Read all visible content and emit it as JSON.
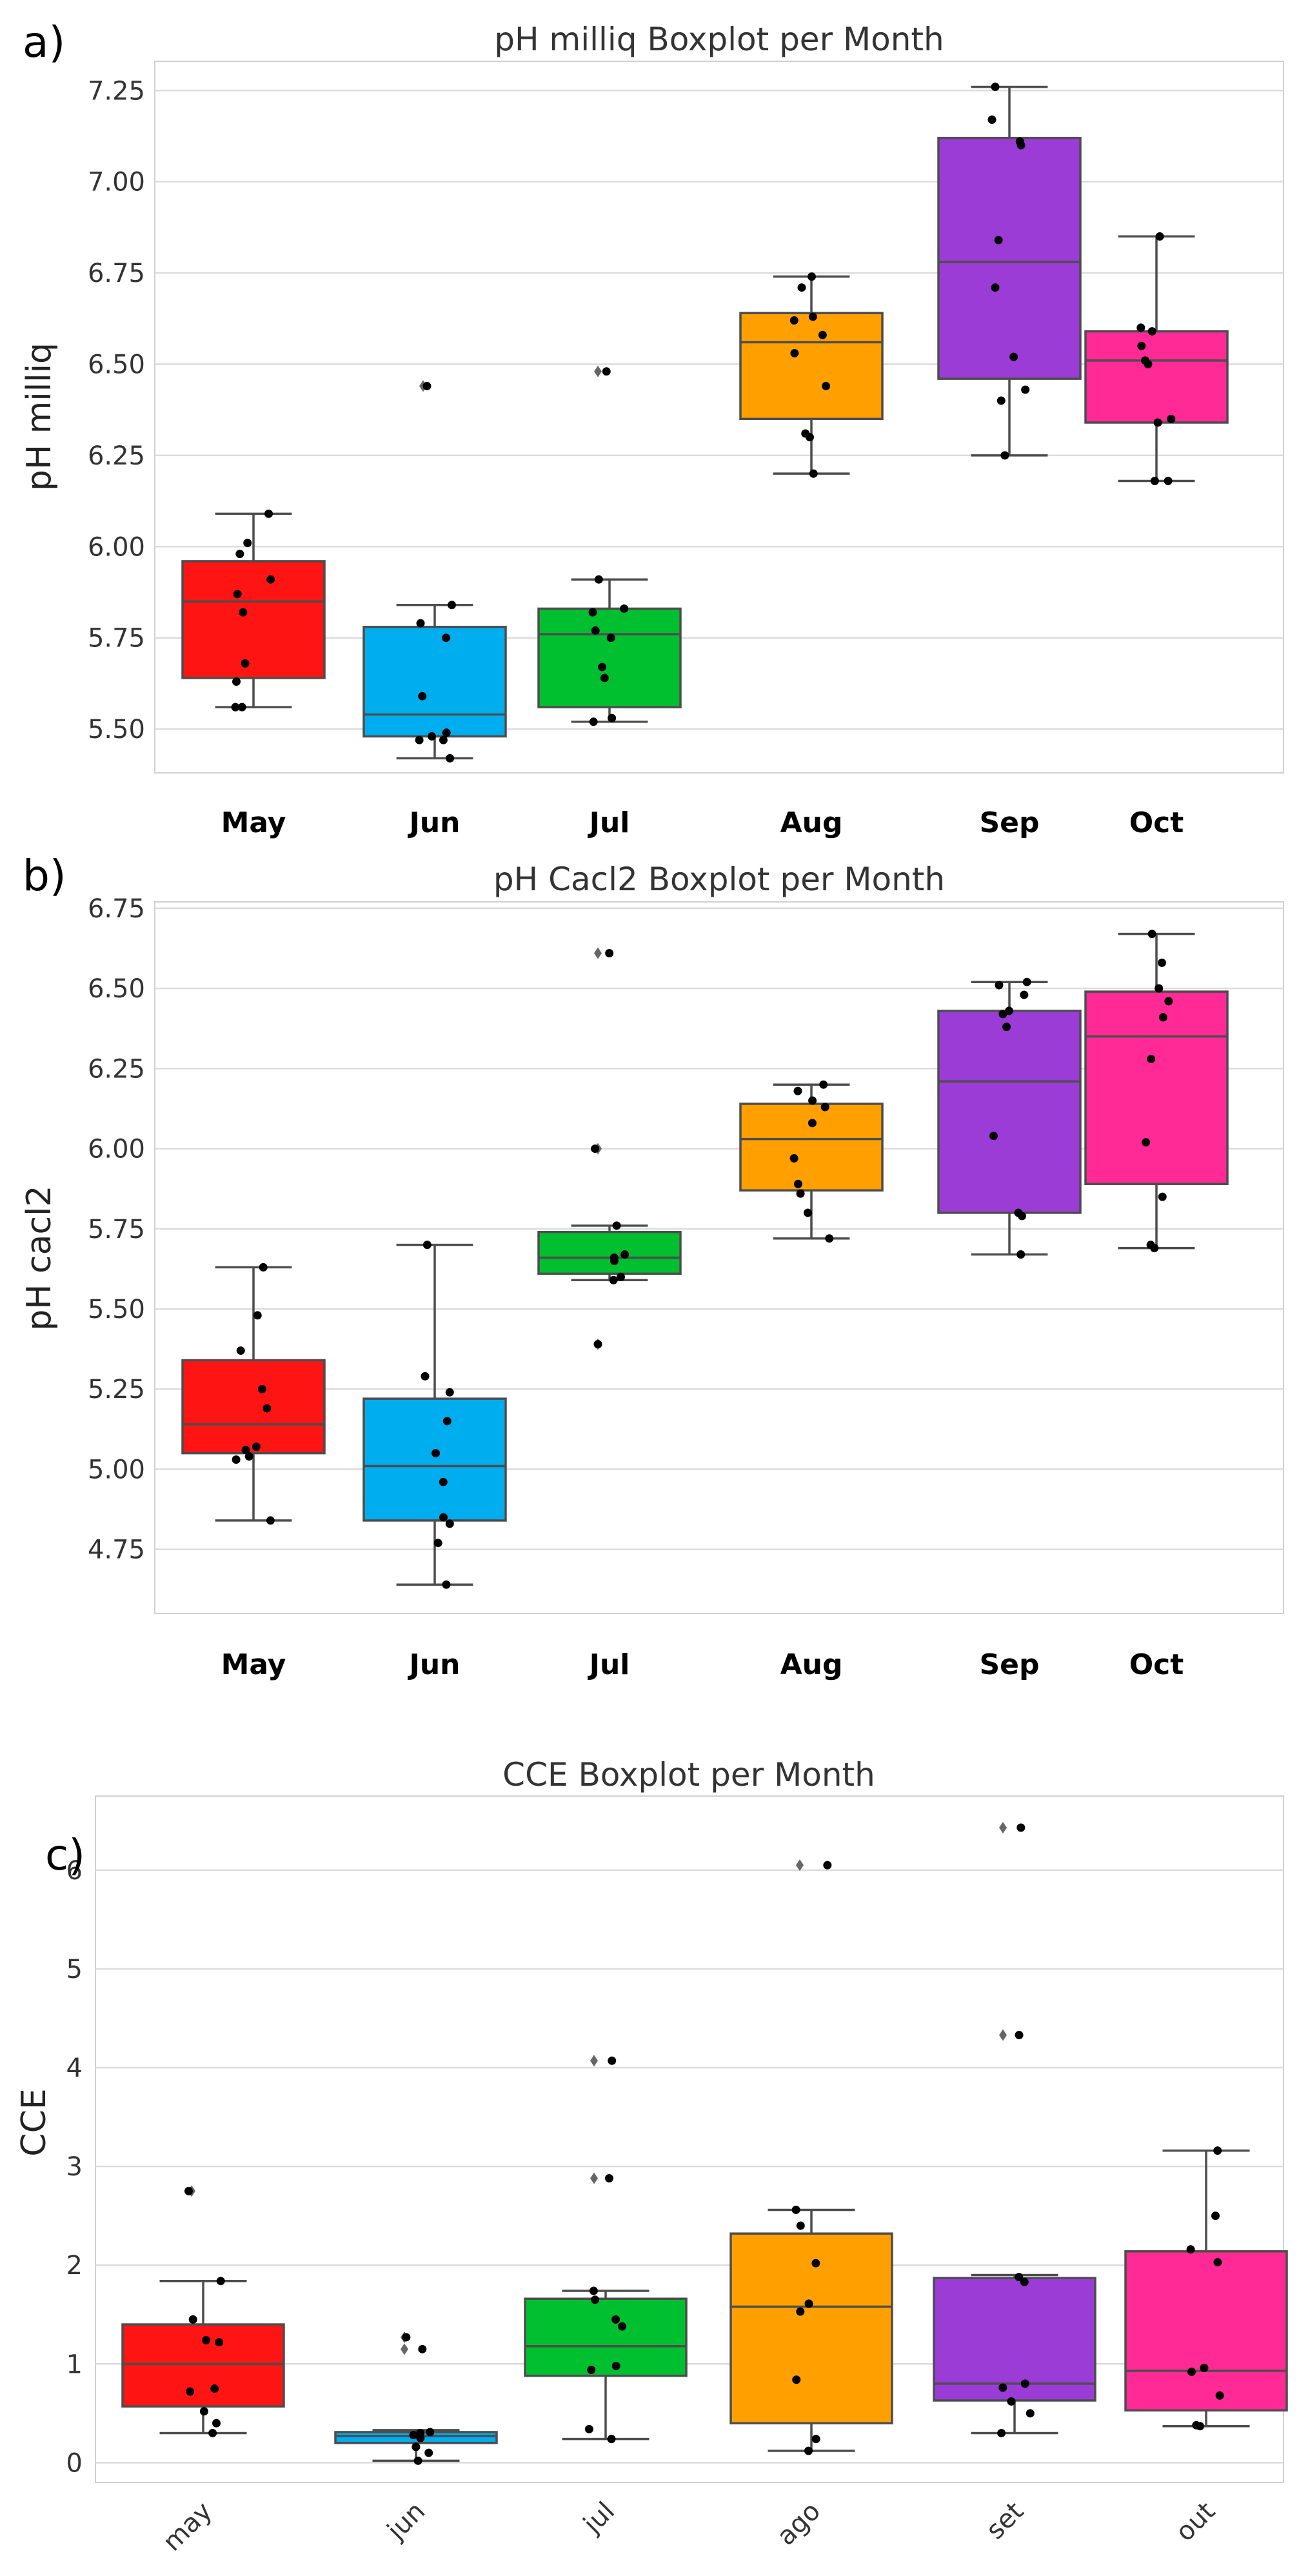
{
  "chart_data": [
    {
      "type": "box",
      "panel_label": "a)",
      "title": "pH milliq Boxplot per Month",
      "xlabel": "",
      "ylabel": "pH milliq",
      "ylim": [
        5.38,
        7.33
      ],
      "yticks": [
        5.5,
        5.75,
        6.0,
        6.25,
        6.5,
        6.75,
        7.0,
        7.25
      ],
      "ytick_labels": [
        "5.50",
        "5.75",
        "6.00",
        "6.25",
        "6.50",
        "6.75",
        "7.00",
        "7.25"
      ],
      "categories": [
        "May",
        "Jun",
        "Jul",
        "Aug",
        "Sep",
        "Oct"
      ],
      "colors": [
        "#ff1414",
        "#00aeef",
        "#00c030",
        "#ffa000",
        "#9b3cd6",
        "#ff2a95"
      ],
      "boxes": [
        {
          "month": "May",
          "whisker_low": 5.56,
          "q1": 5.64,
          "median": 5.85,
          "q3": 5.96,
          "whisker_high": 6.09,
          "fliers": [],
          "points": [
            5.56,
            5.56,
            5.63,
            5.68,
            5.82,
            5.87,
            5.91,
            5.98,
            6.01,
            6.09
          ]
        },
        {
          "month": "Jun",
          "whisker_low": 5.42,
          "q1": 5.48,
          "median": 5.54,
          "q3": 5.78,
          "whisker_high": 5.84,
          "fliers": [
            6.44
          ],
          "points": [
            5.42,
            5.47,
            5.47,
            5.48,
            5.49,
            5.59,
            5.75,
            5.79,
            5.84,
            6.44
          ]
        },
        {
          "month": "Jul",
          "whisker_low": 5.52,
          "q1": 5.56,
          "median": 5.76,
          "q3": 5.83,
          "whisker_high": 5.91,
          "fliers": [
            6.48
          ],
          "points": [
            5.52,
            5.53,
            5.64,
            5.67,
            5.75,
            5.77,
            5.82,
            5.83,
            5.91,
            6.48
          ]
        },
        {
          "month": "Aug",
          "whisker_low": 6.2,
          "q1": 6.35,
          "median": 6.56,
          "q3": 6.64,
          "whisker_high": 6.74,
          "fliers": [],
          "points": [
            6.2,
            6.3,
            6.31,
            6.44,
            6.53,
            6.58,
            6.62,
            6.63,
            6.71,
            6.74
          ]
        },
        {
          "month": "Sep",
          "whisker_low": 6.25,
          "q1": 6.46,
          "median": 6.78,
          "q3": 7.12,
          "whisker_high": 7.26,
          "fliers": [],
          "points": [
            6.25,
            6.4,
            6.43,
            6.52,
            6.71,
            6.84,
            7.1,
            7.11,
            7.17,
            7.26
          ]
        },
        {
          "month": "Oct",
          "whisker_low": 6.18,
          "q1": 6.34,
          "median": 6.51,
          "q3": 6.59,
          "whisker_high": 6.85,
          "fliers": [],
          "points": [
            6.18,
            6.18,
            6.34,
            6.35,
            6.5,
            6.51,
            6.55,
            6.59,
            6.6,
            6.85
          ]
        }
      ]
    },
    {
      "type": "box",
      "panel_label": "b)",
      "title": "pH Cacl2 Boxplot per Month",
      "xlabel": "",
      "ylabel": "pH cacl2",
      "ylim": [
        4.55,
        6.77
      ],
      "yticks": [
        4.75,
        5.0,
        5.25,
        5.5,
        5.75,
        6.0,
        6.25,
        6.5,
        6.75
      ],
      "ytick_labels": [
        "4.75",
        "5.00",
        "5.25",
        "5.50",
        "5.75",
        "6.00",
        "6.25",
        "6.50",
        "6.75"
      ],
      "categories": [
        "May",
        "Jun",
        "Jul",
        "Aug",
        "Sep",
        "Oct"
      ],
      "colors": [
        "#ff1414",
        "#00aeef",
        "#00c030",
        "#ffa000",
        "#9b3cd6",
        "#ff2a95"
      ],
      "boxes": [
        {
          "month": "May",
          "whisker_low": 4.84,
          "q1": 5.05,
          "median": 5.14,
          "q3": 5.34,
          "whisker_high": 5.63,
          "fliers": [],
          "points": [
            4.84,
            5.03,
            5.04,
            5.06,
            5.07,
            5.19,
            5.25,
            5.37,
            5.48,
            5.63
          ]
        },
        {
          "month": "Jun",
          "whisker_low": 4.64,
          "q1": 4.84,
          "median": 5.01,
          "q3": 5.22,
          "whisker_high": 5.7,
          "fliers": [],
          "points": [
            4.64,
            4.77,
            4.83,
            4.85,
            4.96,
            5.05,
            5.15,
            5.24,
            5.29,
            5.7
          ]
        },
        {
          "month": "Jul",
          "whisker_low": 5.59,
          "q1": 5.61,
          "median": 5.66,
          "q3": 5.74,
          "whisker_high": 5.76,
          "fliers": [
            5.39,
            6.0,
            6.61
          ],
          "points": [
            5.39,
            5.59,
            5.6,
            5.65,
            5.66,
            5.67,
            5.76,
            6.0,
            6.61
          ]
        },
        {
          "month": "Aug",
          "whisker_low": 5.72,
          "q1": 5.87,
          "median": 6.03,
          "q3": 6.14,
          "whisker_high": 6.2,
          "fliers": [],
          "points": [
            5.72,
            5.8,
            5.86,
            5.89,
            5.97,
            6.08,
            6.13,
            6.15,
            6.18,
            6.2
          ]
        },
        {
          "month": "Sep",
          "whisker_low": 5.67,
          "q1": 5.8,
          "median": 6.21,
          "q3": 6.43,
          "whisker_high": 6.52,
          "fliers": [],
          "points": [
            5.67,
            5.79,
            5.8,
            6.04,
            6.38,
            6.42,
            6.43,
            6.48,
            6.51,
            6.52
          ]
        },
        {
          "month": "Oct",
          "whisker_low": 5.69,
          "q1": 5.89,
          "median": 6.35,
          "q3": 6.49,
          "whisker_high": 6.67,
          "fliers": [],
          "points": [
            5.69,
            5.7,
            5.85,
            6.02,
            6.28,
            6.41,
            6.46,
            6.5,
            6.58,
            6.67
          ]
        }
      ]
    },
    {
      "type": "box",
      "panel_label": "c)",
      "title": "CCE Boxplot per Month",
      "xlabel": "",
      "ylabel": "CCE",
      "ylim": [
        -0.2,
        6.75
      ],
      "yticks": [
        0,
        1,
        2,
        3,
        4,
        5,
        6
      ],
      "ytick_labels": [
        "0",
        "1",
        "2",
        "3",
        "4",
        "5",
        "6"
      ],
      "categories": [
        "may",
        "jun",
        "jul",
        "ago",
        "set",
        "out"
      ],
      "colors": [
        "#ff1414",
        "#00aeef",
        "#00c030",
        "#ffa000",
        "#9b3cd6",
        "#ff2a95"
      ],
      "boxes": [
        {
          "month": "may",
          "whisker_low": 0.3,
          "q1": 0.57,
          "median": 1.0,
          "q3": 1.4,
          "whisker_high": 1.84,
          "fliers": [
            2.75
          ],
          "points": [
            0.3,
            0.4,
            0.52,
            0.72,
            0.75,
            1.22,
            1.24,
            1.45,
            1.84,
            2.75
          ]
        },
        {
          "month": "jun",
          "whisker_low": 0.02,
          "q1": 0.2,
          "median": 0.27,
          "q3": 0.31,
          "whisker_high": 0.33,
          "fliers": [
            1.15,
            1.27
          ],
          "points": [
            0.02,
            0.1,
            0.16,
            0.25,
            0.28,
            0.3,
            0.31,
            1.15,
            1.27
          ]
        },
        {
          "month": "jul",
          "whisker_low": 0.24,
          "q1": 0.88,
          "median": 1.18,
          "q3": 1.66,
          "whisker_high": 1.74,
          "fliers": [
            2.88,
            4.07
          ],
          "points": [
            0.24,
            0.34,
            0.94,
            0.98,
            1.38,
            1.45,
            1.65,
            1.74,
            2.88,
            4.07
          ]
        },
        {
          "month": "ago",
          "whisker_low": 0.12,
          "q1": 0.4,
          "median": 1.58,
          "q3": 2.32,
          "whisker_high": 2.56,
          "fliers": [
            6.05
          ],
          "points": [
            0.12,
            0.24,
            0.84,
            1.53,
            1.61,
            2.02,
            2.4,
            2.56,
            6.05
          ]
        },
        {
          "month": "set",
          "whisker_low": 0.3,
          "q1": 0.63,
          "median": 0.8,
          "q3": 1.87,
          "whisker_high": 1.9,
          "fliers": [
            4.33,
            6.43
          ],
          "points": [
            0.3,
            0.5,
            0.62,
            0.76,
            0.8,
            1.83,
            1.88,
            4.33,
            6.43
          ]
        },
        {
          "month": "out",
          "whisker_low": 0.37,
          "q1": 0.53,
          "median": 0.93,
          "q3": 2.14,
          "whisker_high": 3.16,
          "fliers": [],
          "points": [
            0.37,
            0.38,
            0.68,
            0.92,
            0.96,
            2.03,
            2.16,
            2.5,
            3.16
          ]
        }
      ]
    }
  ]
}
